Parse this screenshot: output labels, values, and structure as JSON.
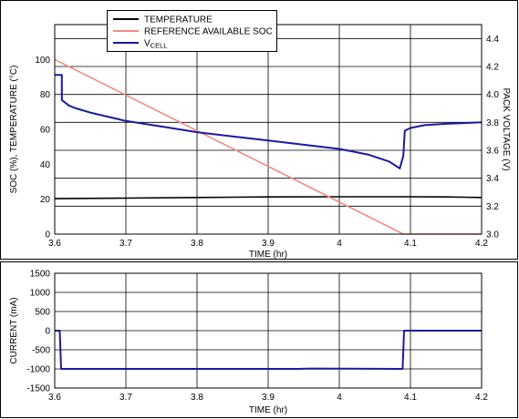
{
  "chart_data": [
    {
      "type": "line",
      "xlabel": "TIME (hr)",
      "ylabel": "SOC (%), TEMPERATURE (°C)",
      "y2label": "PACK VOLTAGE (V)",
      "xlim": [
        3.6,
        4.2
      ],
      "ylim": [
        0,
        120
      ],
      "y2lim": [
        3.0,
        4.5
      ],
      "xticks": [
        "3.6",
        "3.7",
        "3.8",
        "3.9",
        "4",
        "4.1",
        "4.2"
      ],
      "yticks": [
        "0",
        "20",
        "40",
        "60",
        "80",
        "100"
      ],
      "y2ticks": [
        "3.0",
        "3.2",
        "3.4",
        "3.6",
        "3.8",
        "4.0",
        "4.2",
        "4.4"
      ],
      "grid": true,
      "legend_position": "top-center",
      "legend": [
        {
          "label": "TEMPERATURE",
          "sub": "",
          "color": "#000000"
        },
        {
          "label": "REFERENCE AVAILABLE SOC",
          "sub": "",
          "color": "#f08c84"
        },
        {
          "label": "V",
          "sub": "CELL",
          "color": "#1a1aa0"
        }
      ],
      "series": [
        {
          "name": "TEMPERATURE",
          "axis": "left",
          "color": "#000000",
          "points": [
            [
              3.6,
              20.3
            ],
            [
              3.7,
              20.6
            ],
            [
              3.8,
              21.0
            ],
            [
              3.9,
              21.3
            ],
            [
              4.0,
              21.4
            ],
            [
              4.09,
              21.4
            ],
            [
              4.15,
              21.3
            ],
            [
              4.2,
              21.0
            ]
          ]
        },
        {
          "name": "REFERENCE AVAILABLE SOC",
          "axis": "left",
          "color": "#f08c84",
          "points": [
            [
              3.6,
              100
            ],
            [
              4.09,
              0
            ],
            [
              4.2,
              0
            ]
          ]
        },
        {
          "name": "VCELL",
          "axis": "right",
          "color": "#1a1aa0",
          "points": [
            [
              3.6,
              4.14
            ],
            [
              3.61,
              4.14
            ],
            [
              3.61,
              3.96
            ],
            [
              3.62,
              3.92
            ],
            [
              3.63,
              3.9
            ],
            [
              3.65,
              3.87
            ],
            [
              3.7,
              3.81
            ],
            [
              3.75,
              3.77
            ],
            [
              3.8,
              3.73
            ],
            [
              3.85,
              3.7
            ],
            [
              3.9,
              3.67
            ],
            [
              3.95,
              3.64
            ],
            [
              4.0,
              3.61
            ],
            [
              4.04,
              3.57
            ],
            [
              4.07,
              3.52
            ],
            [
              4.085,
              3.47
            ],
            [
              4.09,
              3.56
            ],
            [
              4.092,
              3.74
            ],
            [
              4.1,
              3.76
            ],
            [
              4.12,
              3.78
            ],
            [
              4.15,
              3.79
            ],
            [
              4.2,
              3.8
            ]
          ]
        }
      ]
    },
    {
      "type": "line",
      "xlabel": "TIME (hr)",
      "ylabel": "CURRENT (mA)",
      "xlim": [
        3.6,
        4.2
      ],
      "ylim": [
        -1500,
        1500
      ],
      "xticks": [
        "3.6",
        "3.7",
        "3.8",
        "3.9",
        "4",
        "4.1",
        "4.2"
      ],
      "yticks": [
        "-1500",
        "-1000",
        "-500",
        "0",
        "500",
        "1000",
        "1500"
      ],
      "grid": true,
      "series": [
        {
          "name": "CURRENT",
          "color": "#1a1aa0",
          "points": [
            [
              3.6,
              0
            ],
            [
              3.607,
              0
            ],
            [
              3.609,
              -1000
            ],
            [
              3.94,
              -1000
            ],
            [
              3.96,
              -990
            ],
            [
              4.089,
              -1000
            ],
            [
              4.091,
              0
            ],
            [
              4.2,
              0
            ]
          ]
        }
      ]
    }
  ]
}
